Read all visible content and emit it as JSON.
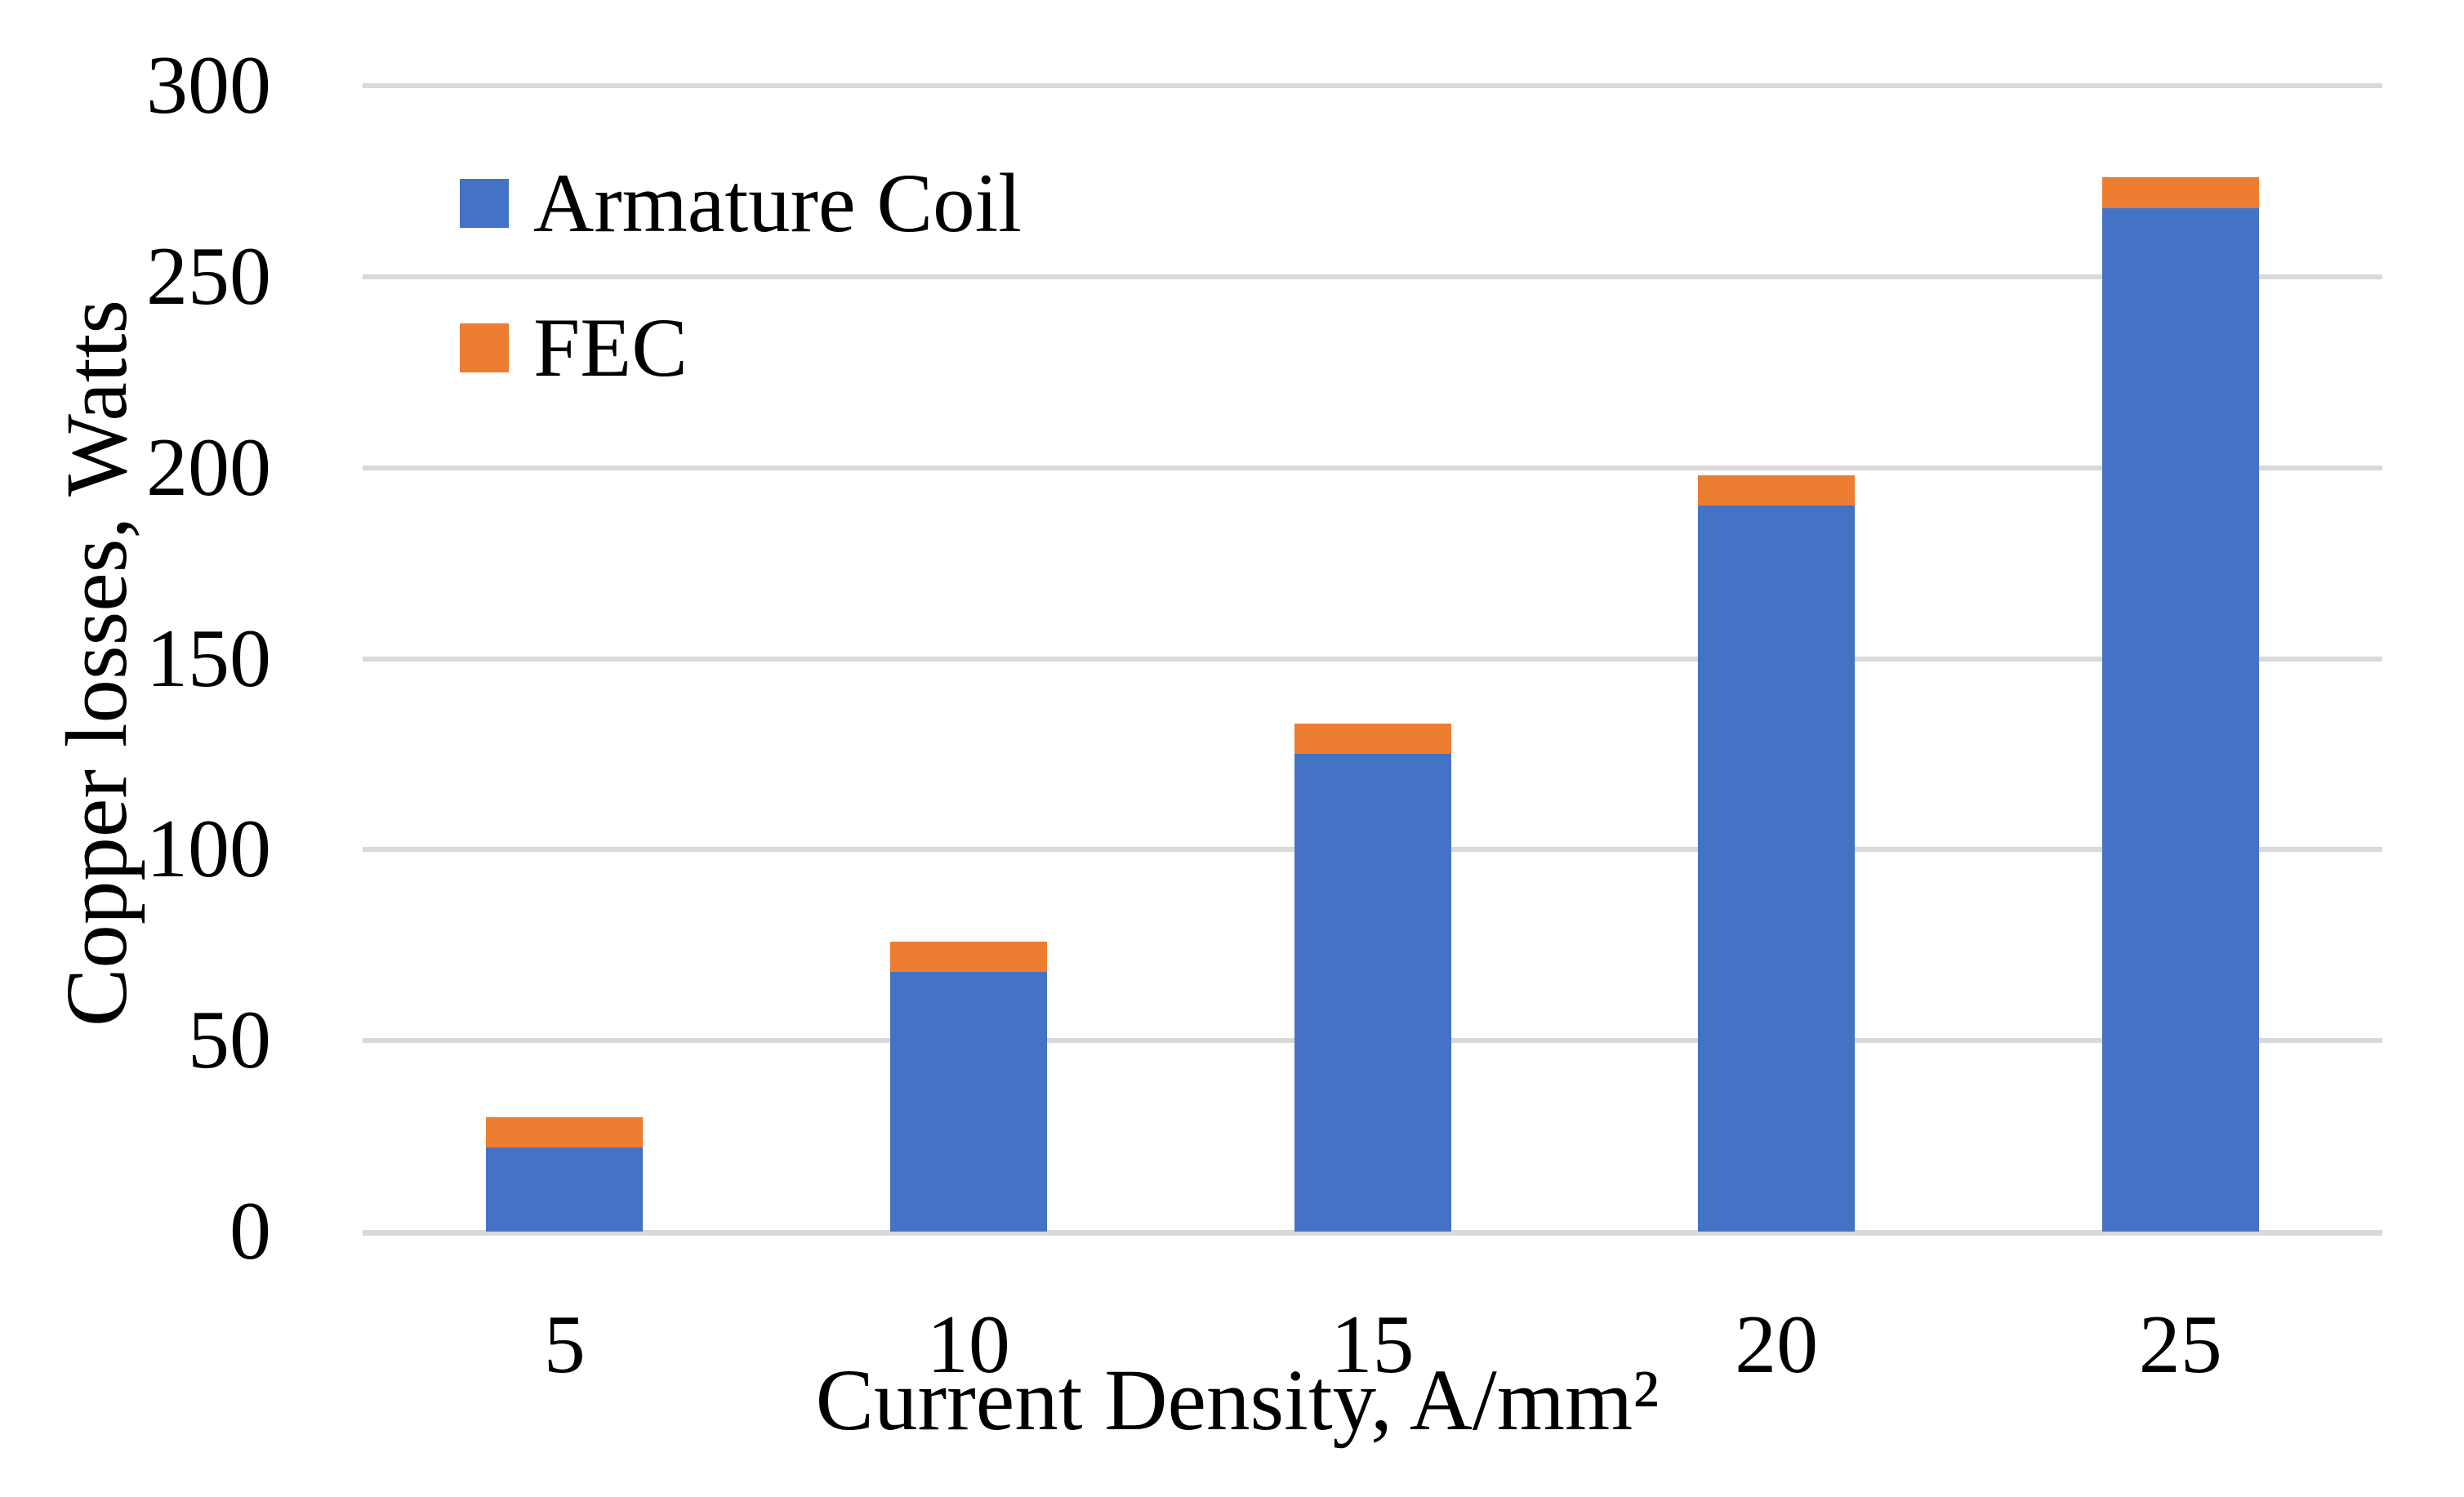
{
  "chart_data": {
    "type": "bar",
    "stacked": true,
    "title": "",
    "xlabel": "Current Density, A/mm²",
    "ylabel": "Copper losses, Watts",
    "categories": [
      "5",
      "10",
      "15",
      "20",
      "25"
    ],
    "series": [
      {
        "name": "Armature Coil",
        "color": "#4472C4",
        "values": [
          22,
          68,
          125,
          190,
          268
        ]
      },
      {
        "name": "FEC",
        "color": "#ED7D31",
        "values": [
          8,
          8,
          8,
          8,
          8
        ]
      }
    ],
    "stacked_totals": [
      30,
      76,
      133,
      198,
      276
    ],
    "ylim": [
      0,
      300
    ],
    "yticks": [
      0,
      50,
      100,
      150,
      200,
      250,
      300
    ],
    "grid": true,
    "legend_position": "top-left-inside",
    "colors": {
      "gridline": "#D9D9D9",
      "axis_line": "#D9D9D9",
      "text": "#000000",
      "background": "#FFFFFF"
    }
  }
}
